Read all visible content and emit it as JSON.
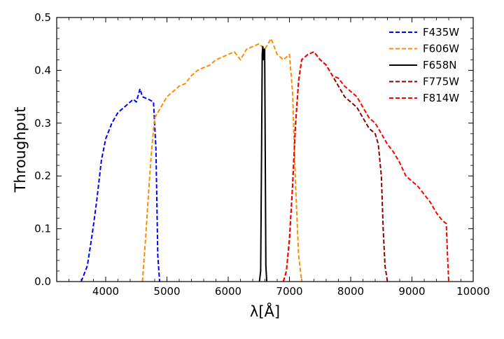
{
  "chart_data": {
    "type": "line",
    "title": "",
    "xlabel": "λ[Å]",
    "ylabel": "Throughput",
    "xlim": [
      3200,
      10000
    ],
    "ylim": [
      0.0,
      0.5
    ],
    "x_ticks": [
      4000,
      5000,
      6000,
      7000,
      8000,
      9000,
      10000
    ],
    "y_ticks": [
      0.0,
      0.1,
      0.2,
      0.3,
      0.4,
      0.5
    ],
    "x_minor_step": 200,
    "y_minor_step": 0.02,
    "grid": false,
    "legend_position": "top-right",
    "series": [
      {
        "name": "F435W",
        "color": "#0000ff",
        "dash": "dashed",
        "points": [
          [
            3600,
            0.0
          ],
          [
            3700,
            0.03
          ],
          [
            3780,
            0.09
          ],
          [
            3850,
            0.15
          ],
          [
            3930,
            0.23
          ],
          [
            4000,
            0.27
          ],
          [
            4100,
            0.3
          ],
          [
            4200,
            0.32
          ],
          [
            4300,
            0.33
          ],
          [
            4400,
            0.34
          ],
          [
            4450,
            0.345
          ],
          [
            4500,
            0.34
          ],
          [
            4560,
            0.365
          ],
          [
            4600,
            0.35
          ],
          [
            4700,
            0.345
          ],
          [
            4780,
            0.34
          ],
          [
            4820,
            0.25
          ],
          [
            4850,
            0.05
          ],
          [
            4880,
            0.0
          ]
        ]
      },
      {
        "name": "F606W",
        "color": "#ff8c00",
        "dash": "dashed",
        "points": [
          [
            4600,
            0.0
          ],
          [
            4650,
            0.08
          ],
          [
            4700,
            0.17
          ],
          [
            4750,
            0.25
          ],
          [
            4800,
            0.31
          ],
          [
            4900,
            0.33
          ],
          [
            5000,
            0.35
          ],
          [
            5100,
            0.36
          ],
          [
            5200,
            0.37
          ],
          [
            5300,
            0.375
          ],
          [
            5400,
            0.39
          ],
          [
            5500,
            0.4
          ],
          [
            5600,
            0.405
          ],
          [
            5700,
            0.41
          ],
          [
            5800,
            0.42
          ],
          [
            5900,
            0.425
          ],
          [
            6000,
            0.43
          ],
          [
            6100,
            0.435
          ],
          [
            6200,
            0.42
          ],
          [
            6300,
            0.44
          ],
          [
            6400,
            0.445
          ],
          [
            6500,
            0.45
          ],
          [
            6600,
            0.44
          ],
          [
            6700,
            0.46
          ],
          [
            6800,
            0.43
          ],
          [
            6900,
            0.42
          ],
          [
            7000,
            0.43
          ],
          [
            7050,
            0.36
          ],
          [
            7100,
            0.18
          ],
          [
            7150,
            0.05
          ],
          [
            7200,
            0.0
          ]
        ]
      },
      {
        "name": "F658N",
        "color": "#000000",
        "dash": "solid",
        "points": [
          [
            6510,
            0.0
          ],
          [
            6530,
            0.02
          ],
          [
            6545,
            0.25
          ],
          [
            6555,
            0.43
          ],
          [
            6565,
            0.445
          ],
          [
            6575,
            0.42
          ],
          [
            6585,
            0.44
          ],
          [
            6595,
            0.44
          ],
          [
            6605,
            0.25
          ],
          [
            6615,
            0.03
          ],
          [
            6630,
            0.0
          ]
        ]
      },
      {
        "name": "F775W",
        "color": "#8b0000",
        "dash": "dashed",
        "points": [
          [
            6900,
            0.0
          ],
          [
            6950,
            0.02
          ],
          [
            7000,
            0.08
          ],
          [
            7050,
            0.18
          ],
          [
            7100,
            0.3
          ],
          [
            7150,
            0.38
          ],
          [
            7200,
            0.42
          ],
          [
            7300,
            0.43
          ],
          [
            7400,
            0.435
          ],
          [
            7500,
            0.42
          ],
          [
            7600,
            0.41
          ],
          [
            7700,
            0.39
          ],
          [
            7800,
            0.37
          ],
          [
            7900,
            0.35
          ],
          [
            8000,
            0.34
          ],
          [
            8100,
            0.33
          ],
          [
            8200,
            0.31
          ],
          [
            8300,
            0.29
          ],
          [
            8400,
            0.28
          ],
          [
            8450,
            0.26
          ],
          [
            8500,
            0.2
          ],
          [
            8530,
            0.1
          ],
          [
            8560,
            0.03
          ],
          [
            8600,
            0.0
          ]
        ]
      },
      {
        "name": "F814W",
        "color": "#ff0000",
        "dash": "dashed",
        "points": [
          [
            6900,
            0.0
          ],
          [
            6950,
            0.02
          ],
          [
            7000,
            0.08
          ],
          [
            7050,
            0.18
          ],
          [
            7100,
            0.3
          ],
          [
            7150,
            0.38
          ],
          [
            7200,
            0.42
          ],
          [
            7300,
            0.43
          ],
          [
            7400,
            0.435
          ],
          [
            7500,
            0.42
          ],
          [
            7600,
            0.41
          ],
          [
            7700,
            0.39
          ],
          [
            7800,
            0.385
          ],
          [
            7900,
            0.37
          ],
          [
            8000,
            0.36
          ],
          [
            8100,
            0.35
          ],
          [
            8200,
            0.33
          ],
          [
            8300,
            0.31
          ],
          [
            8400,
            0.3
          ],
          [
            8500,
            0.28
          ],
          [
            8600,
            0.26
          ],
          [
            8700,
            0.245
          ],
          [
            8800,
            0.225
          ],
          [
            8900,
            0.2
          ],
          [
            9000,
            0.19
          ],
          [
            9100,
            0.18
          ],
          [
            9200,
            0.165
          ],
          [
            9300,
            0.15
          ],
          [
            9400,
            0.13
          ],
          [
            9500,
            0.115
          ],
          [
            9560,
            0.11
          ],
          [
            9580,
            0.05
          ],
          [
            9600,
            0.0
          ]
        ]
      }
    ]
  }
}
